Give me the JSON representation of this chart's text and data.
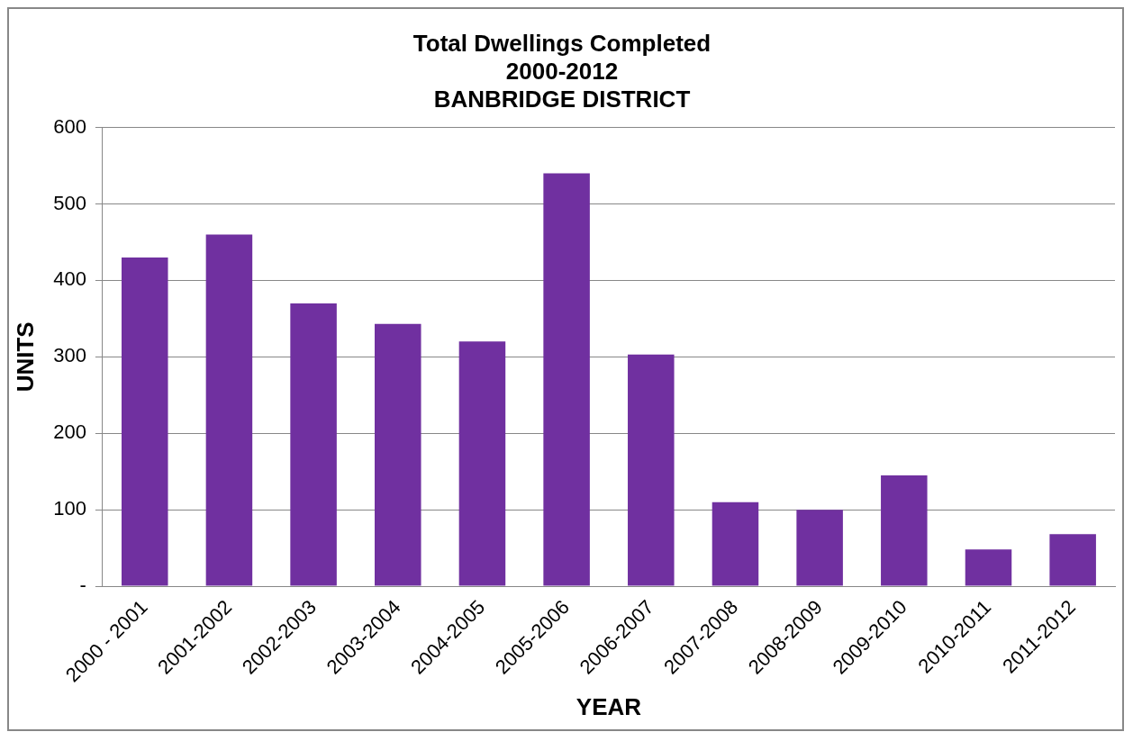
{
  "chart_data": {
    "type": "bar",
    "title": "Total Dwellings Completed\n2000-2012\nBANBRIDGE DISTRICT",
    "xlabel": "YEAR",
    "ylabel": "UNITS",
    "categories": [
      "2000 - 2001",
      "2001-2002",
      "2002-2003",
      "2003-2004",
      "2004-2005",
      "2005-2006",
      "2006-2007",
      "2007-2008",
      "2008-2009",
      "2009-2010",
      "2010-2011",
      "2011-2012"
    ],
    "values": [
      430,
      460,
      370,
      343,
      320,
      540,
      303,
      110,
      100,
      145,
      48,
      68
    ],
    "color": "#7030a0",
    "ylim": [
      0,
      600
    ],
    "yticks": [
      {
        "value": 0,
        "label": "-"
      },
      100,
      200,
      300,
      400,
      500,
      600
    ],
    "grid": "y",
    "legend": false
  }
}
